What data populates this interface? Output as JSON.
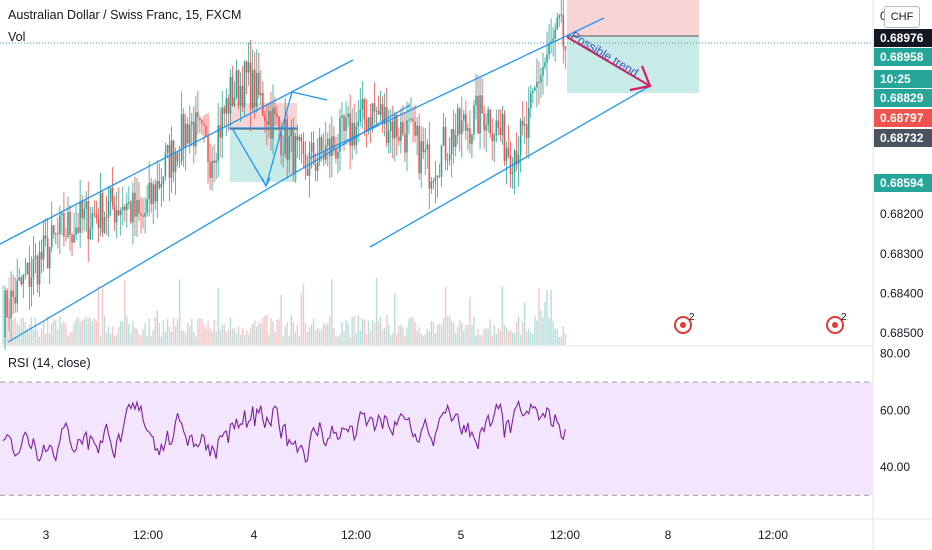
{
  "header": {
    "symbol": "Australian Dollar / Swiss Franc, 15, FXCM",
    "volume_label": "Vol",
    "rsi_label": "RSI (14, close)",
    "currency": "CHF"
  },
  "price_tags": [
    {
      "value": "0.68976",
      "color": "#131722"
    },
    {
      "value": "0.68958",
      "color": "#26a69a"
    },
    {
      "value": "10:25",
      "color": "#26a69a"
    },
    {
      "value": "0.68829",
      "color": "#26a69a"
    },
    {
      "value": "0.68797",
      "color": "#ef5350"
    },
    {
      "value": "0.68732",
      "color": "#4a5160"
    },
    {
      "value": "0.68594",
      "color": "#26a69a"
    }
  ],
  "annotation_text": "Possible trend",
  "colors": {
    "up": "#26a69a",
    "down": "#ef5350",
    "trendline": "#2196f3",
    "rsi_line": "#7b1fa2",
    "rsi_band": "#f3e5fc",
    "stop_zone": "#f8d4d4",
    "target_zone": "#c8ebe7",
    "annotation": "#d81b60"
  },
  "chart_data": {
    "type": "candlestick",
    "x_tick_labels": [
      "3",
      "12:00",
      "4",
      "12:00",
      "5",
      "12:00",
      "8",
      "12:00"
    ],
    "price_axis": {
      "ylim": [
        0.6817,
        0.6904
      ],
      "tick_labels": [
        "0.68200",
        "0.68300",
        "0.68400",
        "0.68500",
        "0.6"
      ]
    },
    "rsi_axis": {
      "ylim": [
        22,
        82
      ],
      "tick_labels": [
        "80.00",
        "60.00",
        "40.00"
      ],
      "band": [
        30,
        70
      ]
    },
    "current_price": 0.68958,
    "anchors": [
      [
        0,
        0.6825
      ],
      [
        16,
        0.6837
      ],
      [
        30,
        0.6846
      ],
      [
        46,
        0.685
      ],
      [
        60,
        0.6853
      ],
      [
        68,
        0.6848
      ],
      [
        80,
        0.6862
      ],
      [
        92,
        0.6873
      ],
      [
        102,
        0.6865
      ],
      [
        112,
        0.688
      ],
      [
        120,
        0.6884
      ],
      [
        135,
        0.6872
      ],
      [
        148,
        0.6862
      ],
      [
        165,
        0.6868
      ],
      [
        182,
        0.6876
      ],
      [
        200,
        0.687
      ],
      [
        210,
        0.6862
      ],
      [
        222,
        0.687
      ],
      [
        238,
        0.6876
      ],
      [
        250,
        0.6866
      ],
      [
        258,
        0.687
      ],
      [
        264,
        0.6885
      ],
      [
        274,
        0.6896
      ],
      [
        278,
        0.689
      ]
    ],
    "candle_count": 278
  }
}
